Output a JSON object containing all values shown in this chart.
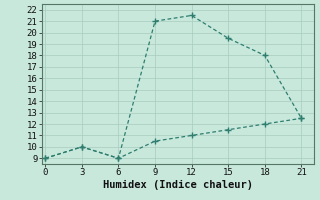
{
  "title": "",
  "xlabel": "Humidex (Indice chaleur)",
  "line1_x": [
    0,
    3,
    6,
    9,
    12,
    15,
    18,
    21
  ],
  "line1_y": [
    9,
    10,
    9,
    21,
    21.5,
    19.5,
    18,
    12.5
  ],
  "line2_x": [
    0,
    3,
    6,
    9,
    12,
    15,
    18,
    21
  ],
  "line2_y": [
    9,
    10,
    9,
    10.5,
    11,
    11.5,
    12,
    12.5
  ],
  "color": "#2E7D6E",
  "xlim": [
    -0.3,
    22
  ],
  "ylim": [
    8.5,
    22.5
  ],
  "xticks": [
    0,
    3,
    6,
    9,
    12,
    15,
    18,
    21
  ],
  "yticks": [
    9,
    10,
    11,
    12,
    13,
    14,
    15,
    16,
    17,
    18,
    19,
    20,
    21,
    22
  ],
  "bg_color": "#C8E8DC",
  "grid_color": "#A8CCBE",
  "tick_fontsize": 6.5,
  "xlabel_fontsize": 7.5
}
